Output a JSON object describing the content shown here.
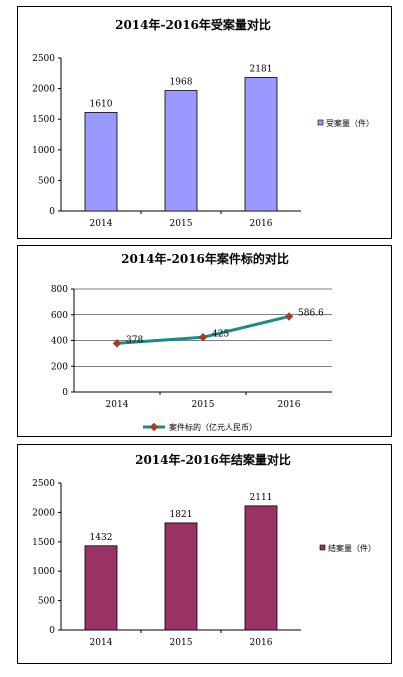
{
  "colors": {
    "bar_purple": "#9999ff",
    "bar_maroon": "#993366",
    "line_teal": "#1c8a8a",
    "marker": "#a0401c"
  },
  "chart_data": [
    {
      "type": "bar",
      "title": "2014年-2016年受案量对比",
      "categories": [
        "2014",
        "2015",
        "2016"
      ],
      "series": [
        {
          "name": "受案量（件）",
          "values": [
            1610,
            1968,
            2181
          ]
        }
      ],
      "data_labels": [
        "1610",
        "1968",
        "2181"
      ],
      "yticks": [
        "0",
        "500",
        "1000",
        "1500",
        "2000",
        "2500"
      ],
      "ylim": [
        0,
        2500
      ],
      "grid": false,
      "legend": "right"
    },
    {
      "type": "line",
      "title": "2014年-2016年案件标的对比",
      "categories": [
        "2014",
        "2015",
        "2016"
      ],
      "series": [
        {
          "name": "案件标的（亿元人民币）",
          "values": [
            378,
            425,
            586.6
          ]
        }
      ],
      "data_labels": [
        "378",
        "425",
        "586.6"
      ],
      "yticks": [
        "0",
        "200",
        "400",
        "600",
        "800"
      ],
      "ylim": [
        0,
        800
      ],
      "grid": true,
      "legend": "bottom"
    },
    {
      "type": "bar",
      "title": "2014年-2016年结案量对比",
      "categories": [
        "2014",
        "2015",
        "2016"
      ],
      "series": [
        {
          "name": "结案量（件）",
          "values": [
            1432,
            1821,
            2111
          ]
        }
      ],
      "data_labels": [
        "1432",
        "1821",
        "2111"
      ],
      "yticks": [
        "0",
        "500",
        "1000",
        "1500",
        "2000",
        "2500"
      ],
      "ylim": [
        0,
        2500
      ],
      "grid": false,
      "legend": "right"
    }
  ]
}
